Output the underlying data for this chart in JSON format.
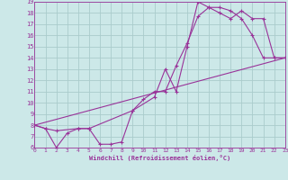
{
  "xlabel": "Windchill (Refroidissement éolien,°C)",
  "bg_color": "#cce8e8",
  "line_color": "#993399",
  "grid_color": "#aacccc",
  "xmin": 0,
  "xmax": 23,
  "ymin": 6,
  "ymax": 19,
  "series1_x": [
    0,
    1,
    2,
    3,
    4,
    5,
    6,
    7,
    8,
    9,
    10,
    11,
    12,
    13,
    14,
    15,
    16,
    17,
    18,
    19,
    20,
    21,
    22,
    23
  ],
  "series1_y": [
    8.0,
    7.7,
    6.0,
    7.3,
    7.7,
    7.7,
    6.3,
    6.3,
    6.5,
    9.3,
    10.3,
    11.0,
    11.0,
    13.3,
    15.3,
    17.7,
    18.5,
    18.5,
    18.2,
    17.5,
    16.0,
    14.0,
    14.0,
    14.0
  ],
  "series2_x": [
    0,
    1,
    2,
    4,
    5,
    9,
    11,
    12,
    13,
    14,
    15,
    16,
    17,
    18,
    19,
    20,
    21,
    22,
    23
  ],
  "series2_y": [
    8.0,
    7.7,
    7.5,
    7.7,
    7.7,
    9.3,
    10.5,
    13.0,
    11.0,
    15.0,
    19.0,
    18.5,
    18.0,
    17.5,
    18.2,
    17.5,
    17.5,
    14.0,
    14.0
  ],
  "series3_x": [
    0,
    23
  ],
  "series3_y": [
    8.0,
    14.0
  ],
  "yticks": [
    6,
    7,
    8,
    9,
    10,
    11,
    12,
    13,
    14,
    15,
    16,
    17,
    18,
    19
  ],
  "xticks": [
    0,
    1,
    2,
    3,
    4,
    5,
    6,
    7,
    8,
    9,
    10,
    11,
    12,
    13,
    14,
    15,
    16,
    17,
    18,
    19,
    20,
    21,
    22,
    23
  ]
}
